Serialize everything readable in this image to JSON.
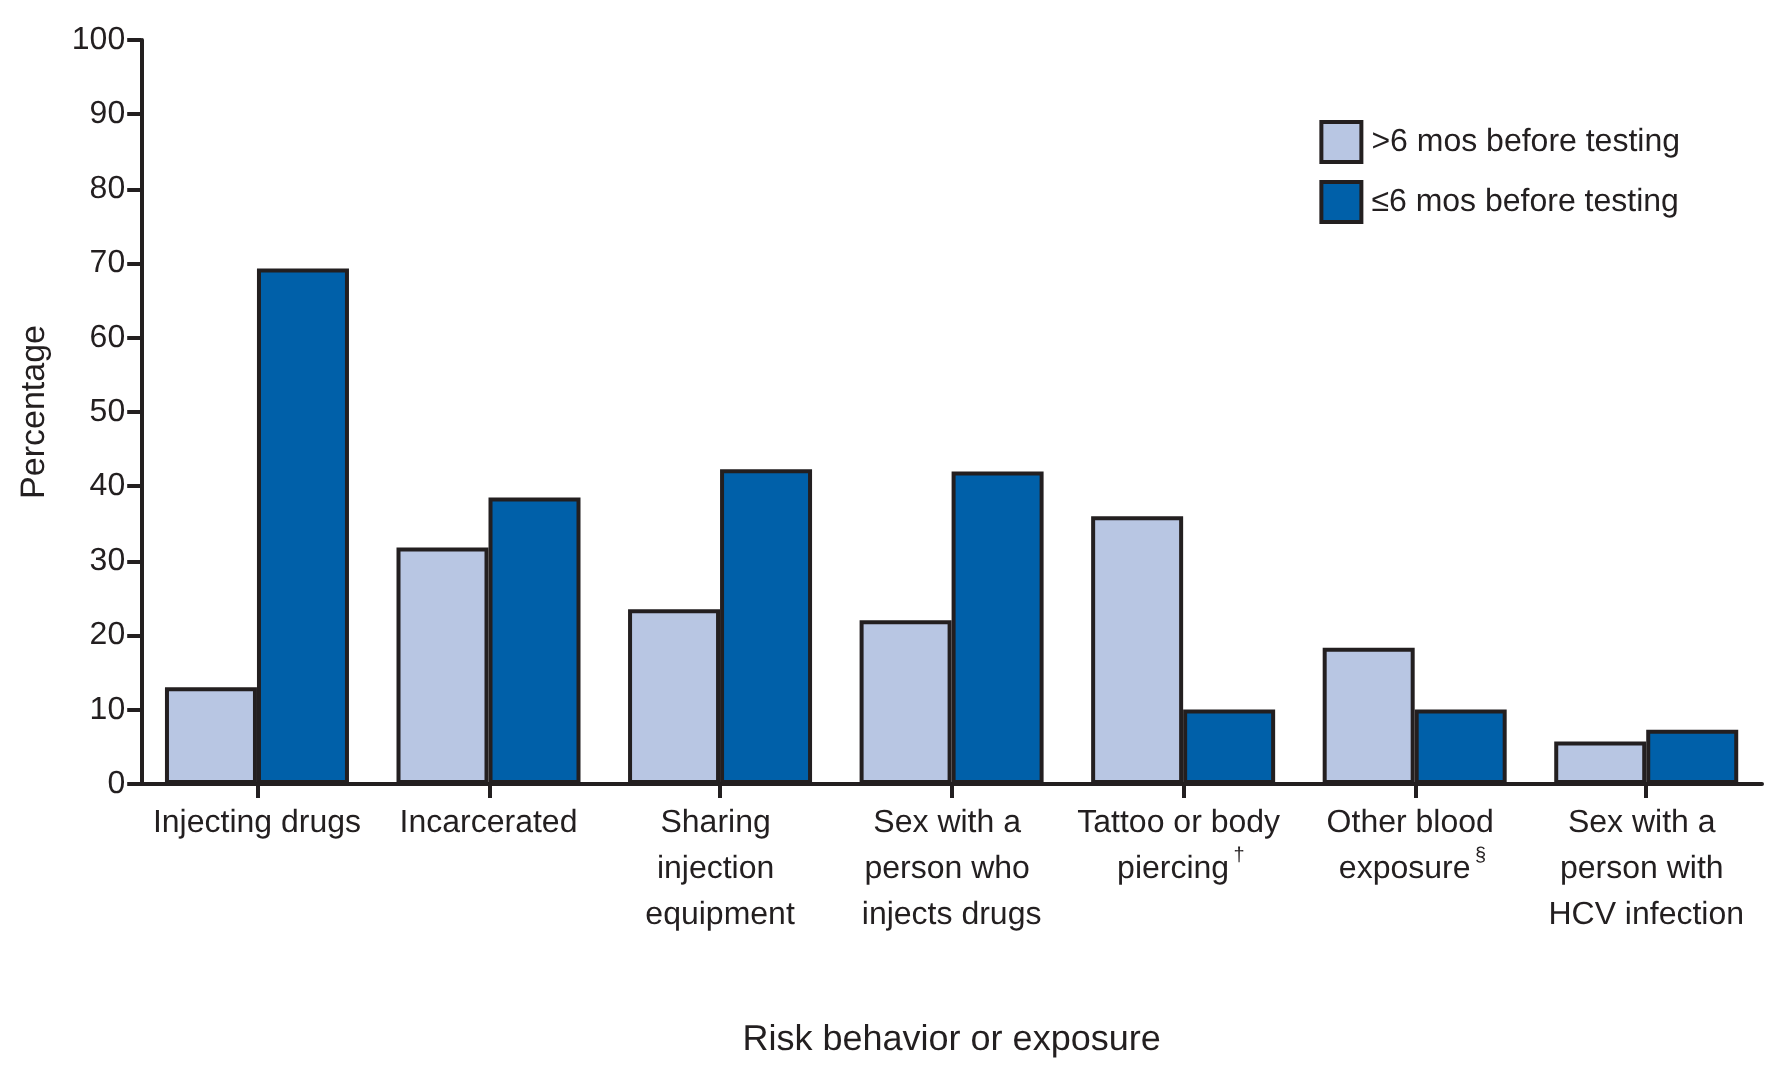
{
  "chart_data": {
    "type": "bar",
    "xlabel": "Risk behavior or exposure",
    "ylabel": "Percentage",
    "categories": [
      "Injecting drugs",
      "Incarcerated",
      "Sharing injection equipment",
      "Sex with a person who injects drugs",
      "Tattoo or body piercing$^{†}$",
      "Other blood exposure$^{§}$",
      "Sex with a person with HCV infection"
    ],
    "series": [
      {
        "name": ">6 mos before testing",
        "color": "#b8c6e3",
        "values": [
          13.0,
          31.8,
          23.5,
          22.0,
          36.0,
          18.3,
          5.7
        ]
      },
      {
        "name": "≤6 mos before testing",
        "color": "#0060a9",
        "values": [
          69.3,
          38.5,
          42.3,
          42.0,
          10.0,
          10.0,
          7.3
        ]
      }
    ],
    "ylim": [
      0,
      100
    ],
    "yticks": [
      0,
      10,
      20,
      30,
      40,
      50,
      60,
      70,
      80,
      90,
      100
    ],
    "grid": false,
    "legend": "top right"
  }
}
